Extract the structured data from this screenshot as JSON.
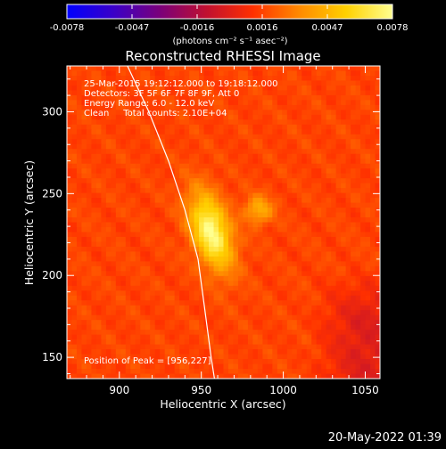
{
  "chart_data": {
    "type": "heatmap",
    "title": "Reconstructed RHESSI Image",
    "xlabel": "Heliocentric X (arcsec)",
    "ylabel": "Heliocentric Y (arcsec)",
    "xlim": [
      868,
      1059
    ],
    "ylim": [
      137,
      328
    ],
    "x_ticks": [
      900,
      950,
      1000,
      1050
    ],
    "y_ticks": [
      150,
      200,
      250,
      300
    ],
    "colorbar": {
      "label": "(photons cm⁻² s⁻¹ asec⁻²)",
      "range": [
        -0.0078,
        0.0078
      ],
      "ticks": [
        "-0.0078",
        "-0.0047",
        "-0.0016",
        "0.0016",
        "0.0047",
        "0.0078"
      ],
      "colormap": [
        "#0000ff",
        "#3a00c8",
        "#7a007a",
        "#c01030",
        "#ff3000",
        "#ff8a00",
        "#ffd000",
        "#ffff90"
      ]
    },
    "annotations": [
      "25-Mar-2015 19:12:12.000 to 19:18:12.000",
      "Detectors: 3F 5F 6F 7F 8F 9F, Att 0",
      "Energy Range: 6.0 - 12.0 keV",
      "Clean     Total counts: 2.10E+04"
    ],
    "peak_label": "Position of Peak = [956,227]",
    "sources": [
      {
        "x": 956,
        "y": 227,
        "peak": 0.0078
      },
      {
        "x": 985,
        "y": 240,
        "peak": 0.0046
      }
    ],
    "limb_curve": [
      [
        904,
        330
      ],
      [
        918,
        300
      ],
      [
        930,
        270
      ],
      [
        940,
        240
      ],
      [
        948,
        210
      ],
      [
        952,
        180
      ],
      [
        956,
        150
      ],
      [
        958,
        137
      ]
    ]
  },
  "footer": {
    "timestamp": "20-May-2022 01:39"
  }
}
